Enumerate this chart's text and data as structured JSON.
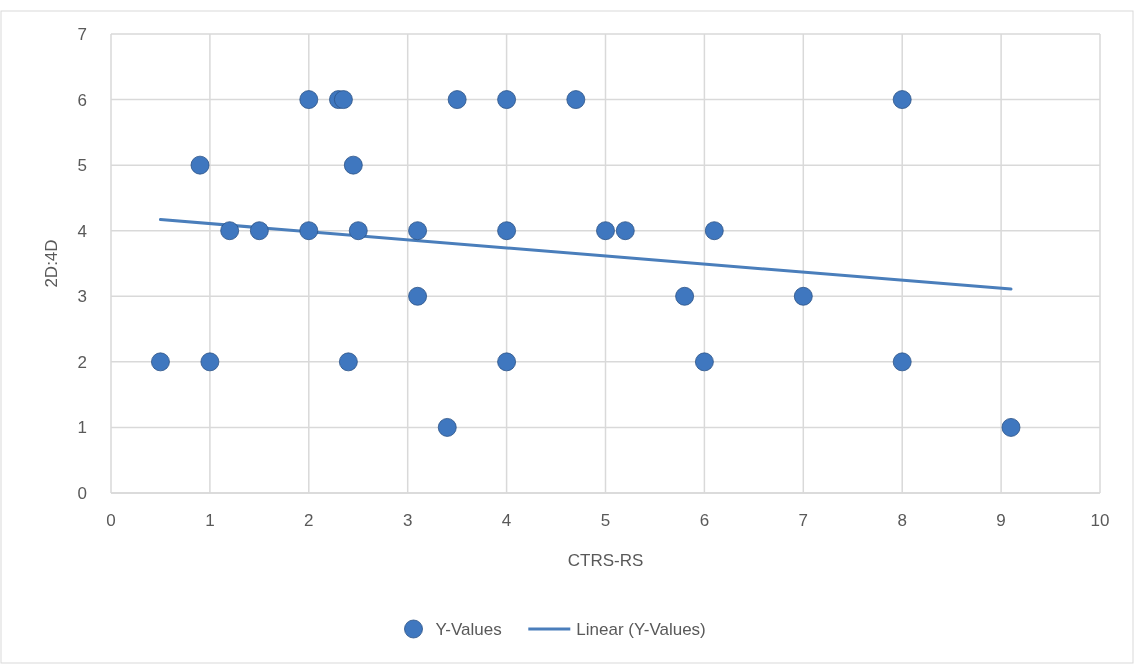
{
  "chart_data": {
    "type": "scatter",
    "xlabel": "CTRS-RS",
    "ylabel": "2D:4D",
    "xlim": [
      0,
      10
    ],
    "ylim": [
      0,
      7
    ],
    "xticks": [
      0,
      1,
      2,
      3,
      4,
      5,
      6,
      7,
      8,
      9,
      10
    ],
    "yticks": [
      0,
      1,
      2,
      3,
      4,
      5,
      6,
      7
    ],
    "grid": true,
    "legend": "bottom",
    "marker": "circle",
    "series": [
      {
        "name": "Y-Values",
        "color": "#3f77bf",
        "x": [
          0.5,
          1,
          0.9,
          1.2,
          1.5,
          2,
          2.3,
          2.35,
          2.45,
          2,
          2.5,
          2.4,
          3.1,
          3.1,
          3.4,
          3.5,
          4,
          4,
          4,
          4.7,
          5,
          5.2,
          5.8,
          6,
          6.1,
          7,
          8,
          8,
          9.1
        ],
        "values": [
          2,
          2,
          5,
          4,
          4,
          6,
          6,
          6,
          5,
          4,
          4,
          2,
          4,
          3,
          1,
          6,
          6,
          4,
          2,
          6,
          4,
          4,
          3,
          2,
          4,
          3,
          6,
          2,
          1
        ]
      },
      {
        "name": "Linear (Y-Values)",
        "type": "line",
        "color": "#4a7ebb",
        "line_style": "solid",
        "marker": "none",
        "x": [
          0.5,
          9.1
        ],
        "values": [
          4.17,
          3.11
        ]
      }
    ]
  }
}
